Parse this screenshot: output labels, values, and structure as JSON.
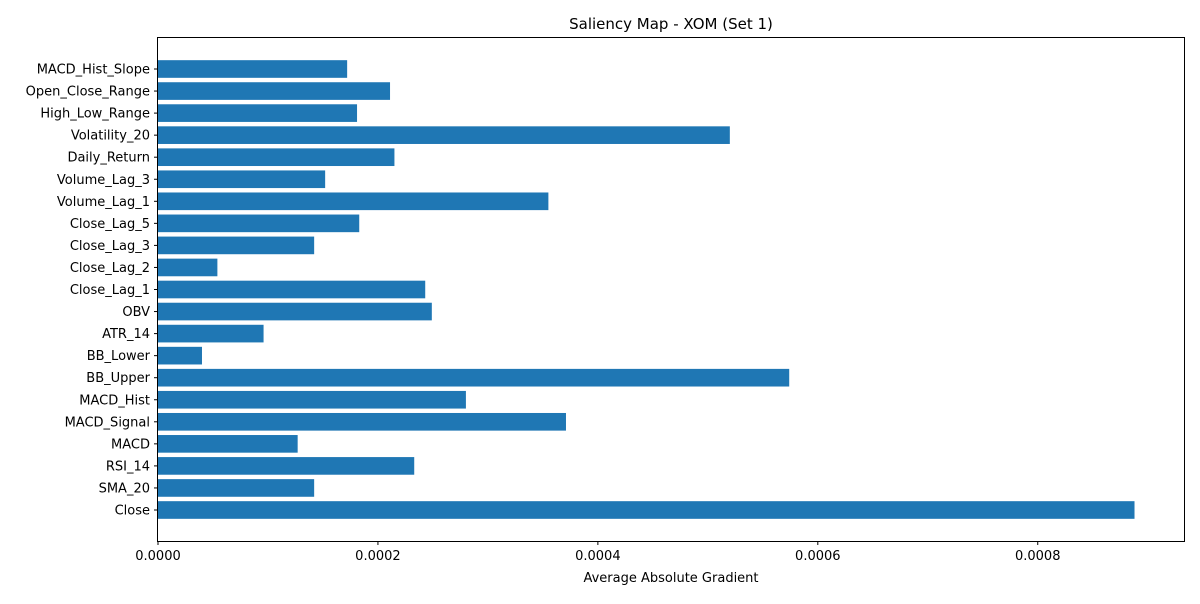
{
  "chart_data": {
    "type": "bar",
    "orientation": "horizontal",
    "title": "Saliency Map - XOM (Set 1)",
    "xlabel": "Average Absolute Gradient",
    "ylabel": "",
    "xlim": [
      0,
      0.000933
    ],
    "xticks": [
      0,
      0.0002,
      0.0004,
      0.0006,
      0.0008
    ],
    "xtick_labels": [
      "0.0000",
      "0.0002",
      "0.0004",
      "0.0006",
      "0.0008"
    ],
    "grid": false,
    "bar_color": "#1f77b4",
    "categories": [
      "Close",
      "SMA_20",
      "RSI_14",
      "MACD",
      "MACD_Signal",
      "MACD_Hist",
      "BB_Upper",
      "BB_Lower",
      "ATR_14",
      "OBV",
      "Close_Lag_1",
      "Close_Lag_2",
      "Close_Lag_3",
      "Close_Lag_5",
      "Volume_Lag_1",
      "Volume_Lag_3",
      "Daily_Return",
      "Volatility_20",
      "High_Low_Range",
      "Open_Close_Range",
      "MACD_Hist_Slope"
    ],
    "values": [
      0.000888,
      0.000142,
      0.000233,
      0.000127,
      0.000371,
      0.00028,
      0.000574,
      4e-05,
      9.6e-05,
      0.000249,
      0.000243,
      5.4e-05,
      0.000142,
      0.000183,
      0.000355,
      0.000152,
      0.000215,
      0.00052,
      0.000181,
      0.000211,
      0.000172
    ]
  }
}
